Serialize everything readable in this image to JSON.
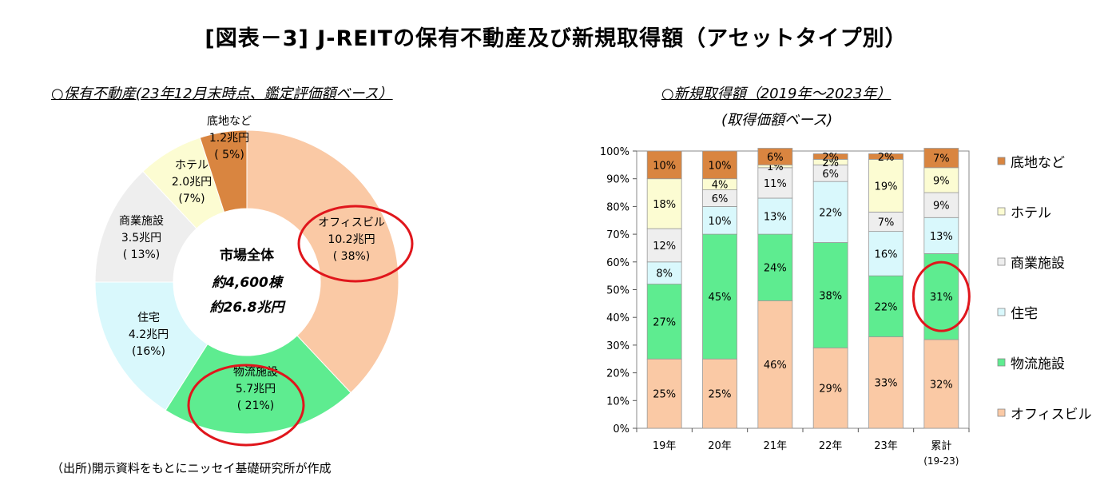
{
  "title": "[図表－3] J-REITの保有不動産及び新規取得額（アセットタイプ別）",
  "left_subtitle": "○保有不動産(23年12月末時点、鑑定評価額ベース）",
  "right_subtitle_line1": "○新規取得額（2019年～2023年）",
  "right_subtitle_line2": "(取得価額ベース)",
  "source": "（出所)開示資料をもとにニッセイ基礎研究所が作成",
  "colors": {
    "office": "#FAC9A5",
    "logistics": "#5EEC90",
    "residential": "#D9F8FC",
    "retail": "#EEEEEE",
    "hotel": "#FCFCD2",
    "land": "#D98540",
    "highlight": "#E0161C"
  },
  "chart_data": [
    {
      "type": "pie",
      "center_text": [
        "市場全体",
        "約4,600棟",
        "約26.8兆円"
      ],
      "slices": [
        {
          "name": "オフィスビル",
          "amount": "10.2兆円",
          "pct_label": "( 38%)",
          "value": 38,
          "color": "#FAC9A5"
        },
        {
          "name": "物流施設",
          "amount": "5.7兆円",
          "pct_label": "( 21%)",
          "value": 21,
          "color": "#5EEC90"
        },
        {
          "name": "住宅",
          "amount": "4.2兆円",
          "pct_label": "(16%)",
          "value": 16,
          "color": "#D9F8FC"
        },
        {
          "name": "商業施設",
          "amount": "3.5兆円",
          "pct_label": "( 13%)",
          "value": 13,
          "color": "#EEEEEE"
        },
        {
          "name": "ホテル",
          "amount": "2.0兆円",
          "pct_label": "(7%)",
          "value": 7,
          "color": "#FCFCD2"
        },
        {
          "name": "底地など",
          "amount": "1.2兆円",
          "pct_label": "( 5%)",
          "value": 5,
          "color": "#D98540"
        }
      ],
      "highlighted": [
        "オフィスビル",
        "物流施設"
      ]
    },
    {
      "type": "bar",
      "stacked": true,
      "categories": [
        "19年",
        "20年",
        "21年",
        "22年",
        "23年",
        "累計"
      ],
      "category_sublabels": [
        "",
        "",
        "",
        "",
        "",
        "(19-23)"
      ],
      "yticks": [
        "0%",
        "10%",
        "20%",
        "30%",
        "40%",
        "50%",
        "60%",
        "70%",
        "80%",
        "90%",
        "100%"
      ],
      "ylim": [
        0,
        100
      ],
      "legend_position": "right",
      "series": [
        {
          "name": "オフィスビル",
          "color": "#FAC9A5",
          "values": [
            25,
            25,
            46,
            29,
            33,
            32
          ]
        },
        {
          "name": "物流施設",
          "color": "#5EEC90",
          "values": [
            27,
            45,
            24,
            38,
            22,
            31
          ]
        },
        {
          "name": "住宅",
          "color": "#D9F8FC",
          "values": [
            8,
            10,
            13,
            22,
            16,
            13
          ]
        },
        {
          "name": "商業施設",
          "color": "#EEEEEE",
          "values": [
            12,
            6,
            11,
            6,
            7,
            9
          ]
        },
        {
          "name": "ホテル",
          "color": "#FCFCD2",
          "values": [
            18,
            4,
            1,
            2,
            19,
            9
          ]
        },
        {
          "name": "底地など",
          "color": "#D98540",
          "values": [
            10,
            10,
            6,
            2,
            2,
            7
          ]
        }
      ],
      "highlighted": {
        "series": "物流施設",
        "category": "累計"
      }
    }
  ]
}
